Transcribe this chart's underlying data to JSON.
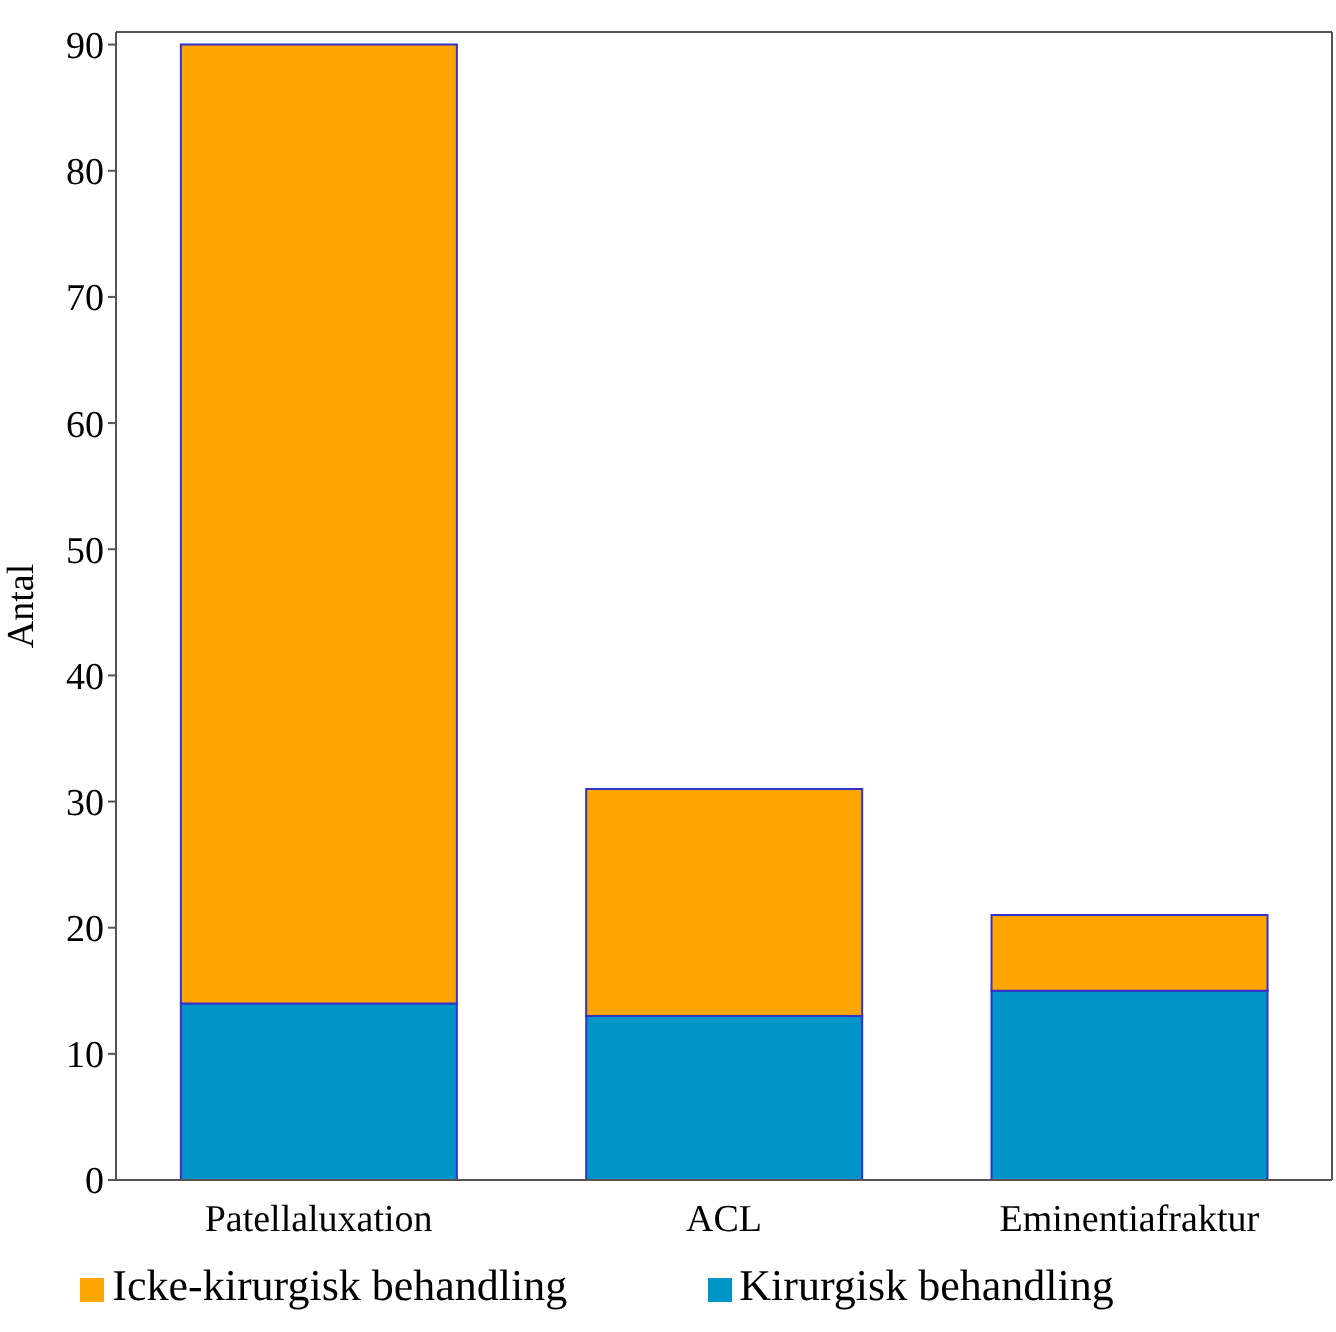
{
  "chart_data": {
    "type": "bar",
    "stacked": true,
    "ylabel": "Antal",
    "categories": [
      "Patellaluxation",
      "ACL",
      "Eminentiafraktur"
    ],
    "series": [
      {
        "name": "Kirurgisk behandling",
        "color": "#0095c9",
        "values": [
          14,
          13,
          15
        ]
      },
      {
        "name": "Icke-kirurgisk behandling",
        "color": "#ffa500",
        "values": [
          76,
          18,
          6
        ]
      }
    ],
    "ylim": [
      0,
      91
    ],
    "yticks": [
      0,
      10,
      20,
      30,
      40,
      50,
      60,
      70,
      80,
      90
    ],
    "grid": false,
    "legend": "bottom"
  }
}
